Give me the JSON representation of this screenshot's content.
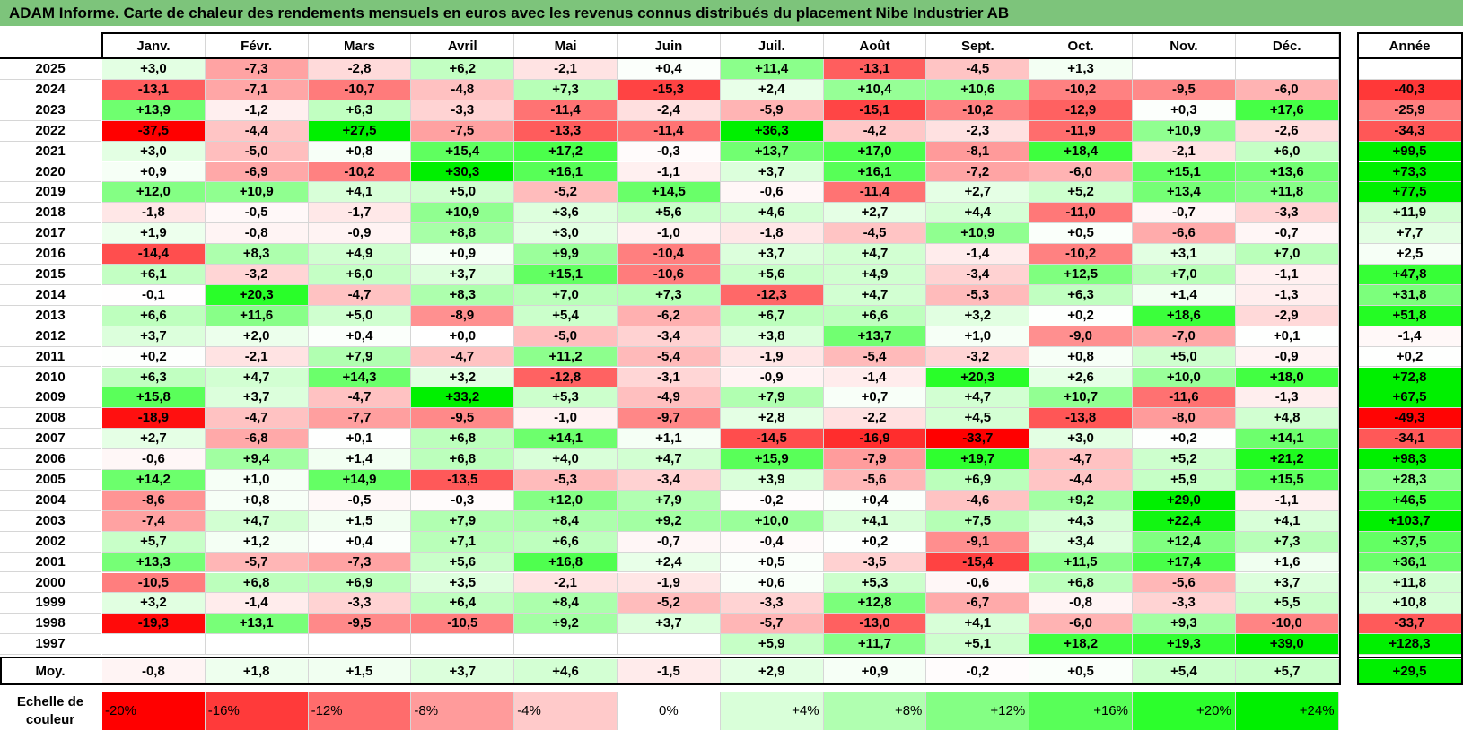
{
  "title": "ADAM Informe. Carte de chaleur des rendements mensuels en euros avec les revenus connus distribués du placement Nibe Industrier AB",
  "chart_data": {
    "type": "heatmap",
    "title": "ADAM Informe. Carte de chaleur des rendements mensuels en euros avec les revenus connus distribués du placement Nibe Industrier AB",
    "columns": [
      "Janv.",
      "Févr.",
      "Mars",
      "Avril",
      "Mai",
      "Juin",
      "Juil.",
      "Août",
      "Sept.",
      "Oct.",
      "Nov.",
      "Déc."
    ],
    "year_column_label": "Année",
    "rows": [
      {
        "year": "2025",
        "values": [
          "+3,0",
          "-7,3",
          "-2,8",
          "+6,2",
          "-2,1",
          "+0,4",
          "+11,4",
          "-13,1",
          "-4,5",
          "+1,3",
          "",
          ""
        ],
        "total": ""
      },
      {
        "year": "2024",
        "values": [
          "-13,1",
          "-7,1",
          "-10,7",
          "-4,8",
          "+7,3",
          "-15,3",
          "+2,4",
          "+10,4",
          "+10,6",
          "-10,2",
          "-9,5",
          "-6,0"
        ],
        "total": "-40,3"
      },
      {
        "year": "2023",
        "values": [
          "+13,9",
          "-1,2",
          "+6,3",
          "-3,3",
          "-11,4",
          "-2,4",
          "-5,9",
          "-15,1",
          "-10,2",
          "-12,9",
          "+0,3",
          "+17,6"
        ],
        "total": "-25,9"
      },
      {
        "year": "2022",
        "values": [
          "-37,5",
          "-4,4",
          "+27,5",
          "-7,5",
          "-13,3",
          "-11,4",
          "+36,3",
          "-4,2",
          "-2,3",
          "-11,9",
          "+10,9",
          "-2,6"
        ],
        "total": "-34,3"
      },
      {
        "year": "2021",
        "values": [
          "+3,0",
          "-5,0",
          "+0,8",
          "+15,4",
          "+17,2",
          "-0,3",
          "+13,7",
          "+17,0",
          "-8,1",
          "+18,4",
          "-2,1",
          "+6,0"
        ],
        "total": "+99,5"
      },
      {
        "year": "2020",
        "values": [
          "+0,9",
          "-6,9",
          "-10,2",
          "+30,3",
          "+16,1",
          "-1,1",
          "+3,7",
          "+16,1",
          "-7,2",
          "-6,0",
          "+15,1",
          "+13,6"
        ],
        "total": "+73,3"
      },
      {
        "year": "2019",
        "values": [
          "+12,0",
          "+10,9",
          "+4,1",
          "+5,0",
          "-5,2",
          "+14,5",
          "-0,6",
          "-11,4",
          "+2,7",
          "+5,2",
          "+13,4",
          "+11,8"
        ],
        "total": "+77,5"
      },
      {
        "year": "2018",
        "values": [
          "-1,8",
          "-0,5",
          "-1,7",
          "+10,9",
          "+3,6",
          "+5,6",
          "+4,6",
          "+2,7",
          "+4,4",
          "-11,0",
          "-0,7",
          "-3,3"
        ],
        "total": "+11,9"
      },
      {
        "year": "2017",
        "values": [
          "+1,9",
          "-0,8",
          "-0,9",
          "+8,8",
          "+3,0",
          "-1,0",
          "-1,8",
          "-4,5",
          "+10,9",
          "+0,5",
          "-6,6",
          "-0,7"
        ],
        "total": "+7,7"
      },
      {
        "year": "2016",
        "values": [
          "-14,4",
          "+8,3",
          "+4,9",
          "+0,9",
          "+9,9",
          "-10,4",
          "+3,7",
          "+4,7",
          "-1,4",
          "-10,2",
          "+3,1",
          "+7,0"
        ],
        "total": "+2,5"
      },
      {
        "year": "2015",
        "values": [
          "+6,1",
          "-3,2",
          "+6,0",
          "+3,7",
          "+15,1",
          "-10,6",
          "+5,6",
          "+4,9",
          "-3,4",
          "+12,5",
          "+7,0",
          "-1,1"
        ],
        "total": "+47,8"
      },
      {
        "year": "2014",
        "values": [
          "-0,1",
          "+20,3",
          "-4,7",
          "+8,3",
          "+7,0",
          "+7,3",
          "-12,3",
          "+4,7",
          "-5,3",
          "+6,3",
          "+1,4",
          "-1,3"
        ],
        "total": "+31,8"
      },
      {
        "year": "2013",
        "values": [
          "+6,6",
          "+11,6",
          "+5,0",
          "-8,9",
          "+5,4",
          "-6,2",
          "+6,7",
          "+6,6",
          "+3,2",
          "+0,2",
          "+18,6",
          "-2,9"
        ],
        "total": "+51,8"
      },
      {
        "year": "2012",
        "values": [
          "+3,7",
          "+2,0",
          "+0,4",
          "+0,0",
          "-5,0",
          "-3,4",
          "+3,8",
          "+13,7",
          "+1,0",
          "-9,0",
          "-7,0",
          "+0,1"
        ],
        "total": "-1,4"
      },
      {
        "year": "2011",
        "values": [
          "+0,2",
          "-2,1",
          "+7,9",
          "-4,7",
          "+11,2",
          "-5,4",
          "-1,9",
          "-5,4",
          "-3,2",
          "+0,8",
          "+5,0",
          "-0,9"
        ],
        "total": "+0,2"
      },
      {
        "year": "2010",
        "values": [
          "+6,3",
          "+4,7",
          "+14,3",
          "+3,2",
          "-12,8",
          "-3,1",
          "-0,9",
          "-1,4",
          "+20,3",
          "+2,6",
          "+10,0",
          "+18,0"
        ],
        "total": "+72,8"
      },
      {
        "year": "2009",
        "values": [
          "+15,8",
          "+3,7",
          "-4,7",
          "+33,2",
          "+5,3",
          "-4,9",
          "+7,9",
          "+0,7",
          "+4,7",
          "+10,7",
          "-11,6",
          "-1,3"
        ],
        "total": "+67,5"
      },
      {
        "year": "2008",
        "values": [
          "-18,9",
          "-4,7",
          "-7,7",
          "-9,5",
          "-1,0",
          "-9,7",
          "+2,8",
          "-2,2",
          "+4,5",
          "-13,8",
          "-8,0",
          "+4,8"
        ],
        "total": "-49,3"
      },
      {
        "year": "2007",
        "values": [
          "+2,7",
          "-6,8",
          "+0,1",
          "+6,8",
          "+14,1",
          "+1,1",
          "-14,5",
          "-16,9",
          "-33,7",
          "+3,0",
          "+0,2",
          "+14,1"
        ],
        "total": "-34,1"
      },
      {
        "year": "2006",
        "values": [
          "-0,6",
          "+9,4",
          "+1,4",
          "+6,8",
          "+4,0",
          "+4,7",
          "+15,9",
          "-7,9",
          "+19,7",
          "-4,7",
          "+5,2",
          "+21,2"
        ],
        "total": "+98,3"
      },
      {
        "year": "2005",
        "values": [
          "+14,2",
          "+1,0",
          "+14,9",
          "-13,5",
          "-5,3",
          "-3,4",
          "+3,9",
          "-5,6",
          "+6,9",
          "-4,4",
          "+5,9",
          "+15,5"
        ],
        "total": "+28,3"
      },
      {
        "year": "2004",
        "values": [
          "-8,6",
          "+0,8",
          "-0,5",
          "-0,3",
          "+12,0",
          "+7,9",
          "-0,2",
          "+0,4",
          "-4,6",
          "+9,2",
          "+29,0",
          "-1,1"
        ],
        "total": "+46,5"
      },
      {
        "year": "2003",
        "values": [
          "-7,4",
          "+4,7",
          "+1,5",
          "+7,9",
          "+8,4",
          "+9,2",
          "+10,0",
          "+4,1",
          "+7,5",
          "+4,3",
          "+22,4",
          "+4,1"
        ],
        "total": "+103,7"
      },
      {
        "year": "2002",
        "values": [
          "+5,7",
          "+1,2",
          "+0,4",
          "+7,1",
          "+6,6",
          "-0,7",
          "-0,4",
          "+0,2",
          "-9,1",
          "+3,4",
          "+12,4",
          "+7,3"
        ],
        "total": "+37,5"
      },
      {
        "year": "2001",
        "values": [
          "+13,3",
          "-5,7",
          "-7,3",
          "+5,6",
          "+16,8",
          "+2,4",
          "+0,5",
          "-3,5",
          "-15,4",
          "+11,5",
          "+17,4",
          "+1,6"
        ],
        "total": "+36,1"
      },
      {
        "year": "2000",
        "values": [
          "-10,5",
          "+6,8",
          "+6,9",
          "+3,5",
          "-2,1",
          "-1,9",
          "+0,6",
          "+5,3",
          "-0,6",
          "+6,8",
          "-5,6",
          "+3,7"
        ],
        "total": "+11,8"
      },
      {
        "year": "1999",
        "values": [
          "+3,2",
          "-1,4",
          "-3,3",
          "+6,4",
          "+8,4",
          "-5,2",
          "-3,3",
          "+12,8",
          "-6,7",
          "-0,8",
          "-3,3",
          "+5,5"
        ],
        "total": "+10,8"
      },
      {
        "year": "1998",
        "values": [
          "-19,3",
          "+13,1",
          "-9,5",
          "-10,5",
          "+9,2",
          "+3,7",
          "-5,7",
          "-13,0",
          "+4,1",
          "-6,0",
          "+9,3",
          "-10,0"
        ],
        "total": "-33,7"
      },
      {
        "year": "1997",
        "values": [
          "",
          "",
          "",
          "",
          "",
          "",
          "+5,9",
          "+11,7",
          "+5,1",
          "+18,2",
          "+19,3",
          "+39,0"
        ],
        "total": "+128,3"
      }
    ],
    "average": {
      "label": "Moy.",
      "values": [
        "-0,8",
        "+1,8",
        "+1,5",
        "+3,7",
        "+4,6",
        "-1,5",
        "+2,9",
        "+0,9",
        "-0,2",
        "+0,5",
        "+5,4",
        "+5,7"
      ],
      "total": "+29,5"
    },
    "color_scale": {
      "label": "Echelle de couleur",
      "steps": [
        {
          "text": "-20%",
          "value": -20,
          "color": "#ff0000"
        },
        {
          "text": "-16%",
          "value": -16,
          "color": "#ff3a3a"
        },
        {
          "text": "-12%",
          "value": -12,
          "color": "#ff6c6c"
        },
        {
          "text": "-8%",
          "value": -8,
          "color": "#ff9b9b"
        },
        {
          "text": "-4%",
          "value": -4,
          "color": "#ffcaca"
        },
        {
          "text": "0%",
          "value": 0,
          "color": "#ffffff"
        },
        {
          "text": "+4%",
          "value": 4,
          "color": "#d9ffd9"
        },
        {
          "text": "+8%",
          "value": 8,
          "color": "#b0ffb0"
        },
        {
          "text": "+12%",
          "value": 12,
          "color": "#84ff84"
        },
        {
          "text": "+16%",
          "value": 16,
          "color": "#58ff58"
        },
        {
          "text": "+20%",
          "value": 20,
          "color": "#2cff2c"
        },
        {
          "text": "+24%",
          "value": 24,
          "color": "#00f000"
        }
      ]
    }
  }
}
